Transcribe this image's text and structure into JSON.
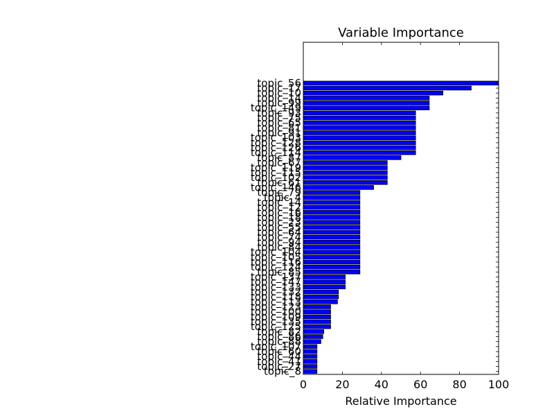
{
  "chart_data": {
    "type": "bar",
    "orientation": "horizontal",
    "title": "Variable Importance",
    "xlabel": "Relative Importance",
    "ylabel": "",
    "xlim": [
      0,
      100
    ],
    "xticks": [
      0,
      20,
      40,
      60,
      80,
      100
    ],
    "grid": false,
    "legend": "none",
    "bar_color": "#0000ff",
    "edge_color": "#000000",
    "categories": [
      "topic_56",
      "topic_17",
      "topic_10",
      "topic_14",
      "topic_99",
      "topic_149",
      "topic_93",
      "topic_75",
      "topic_65",
      "topic_81",
      "topic_91",
      "topic_103",
      "topic_128",
      "topic_126",
      "topic_114",
      "topic_87",
      "topic_67",
      "topic_119",
      "topic_115",
      "topic_102",
      "topic_61",
      "topic_146",
      "topic_79",
      "topic_4",
      "topic_14",
      "topic_12",
      "topic_16",
      "topic_18",
      "topic_23",
      "topic_55",
      "topic_64",
      "topic_74",
      "topic_94",
      "topic_84",
      "topic_104",
      "topic_105",
      "topic_116",
      "topic_124",
      "topic_85",
      "topic_137",
      "topic_147",
      "topic_133",
      "topic_132",
      "topic_118",
      "topic_113",
      "topic_123",
      "topic_100",
      "topic_109",
      "topic_135",
      "topic_125",
      "topic_82",
      "topic_86",
      "topic_88",
      "topic_107",
      "topic_60",
      "topic_44",
      "topic_41",
      "topic_27",
      "topic_8"
    ],
    "values": [
      100,
      86,
      71.5,
      64.5,
      64.5,
      64.5,
      57.5,
      57.5,
      57.5,
      57.5,
      57.5,
      57.5,
      57.5,
      57.5,
      57.5,
      50,
      43,
      43,
      43,
      43,
      43,
      36,
      29,
      29,
      29,
      29,
      29,
      29,
      29,
      29,
      29,
      29,
      29,
      29,
      29,
      29,
      29,
      29,
      29,
      21.5,
      21.5,
      21.5,
      18,
      18,
      17.5,
      14,
      14,
      14,
      14,
      14,
      10.5,
      10,
      9,
      7,
      7,
      7,
      7,
      7,
      7
    ]
  }
}
